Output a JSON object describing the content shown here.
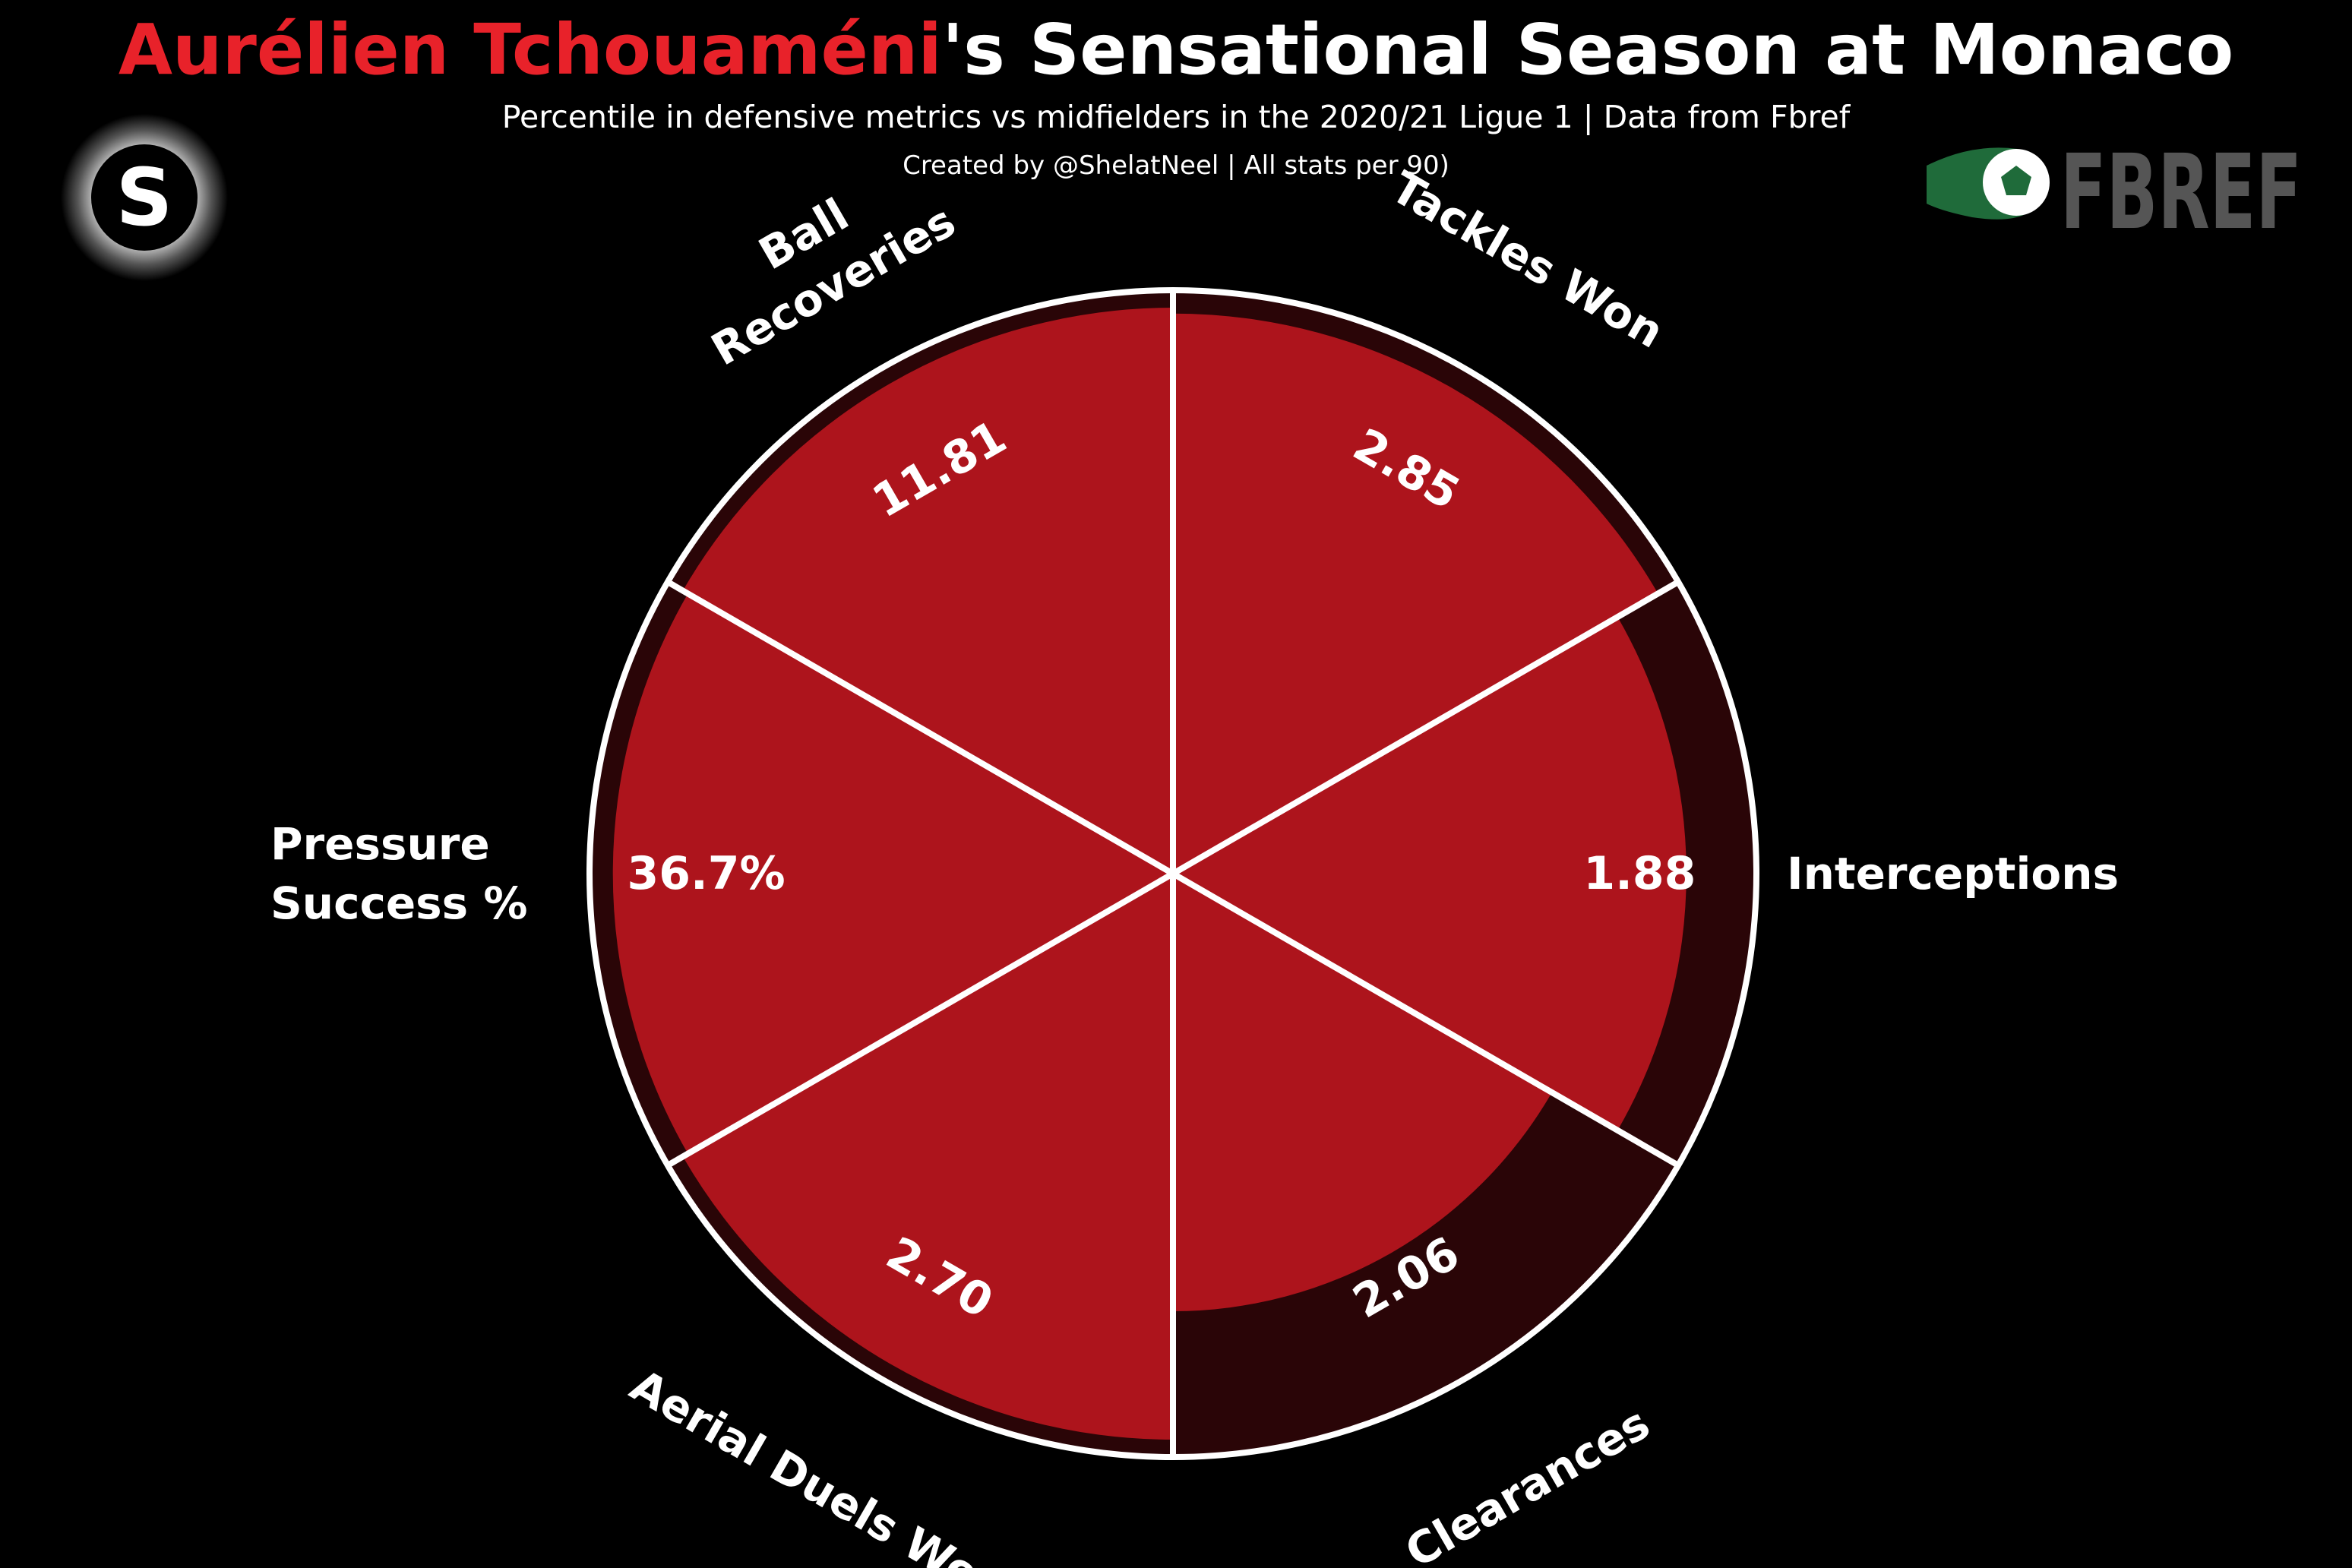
{
  "header": {
    "title_player": "Aurélien Tchouaméni",
    "title_rest": "'s Sensational Season at Monaco",
    "subtitle": "Percentile in defensive metrics vs midfielders in the 2020/21 Ligue 1 | Data from Fbref",
    "credit": "Created by @ShelatNeel | All stats per 90)"
  },
  "logos": {
    "left_letter": "S",
    "fbref_text": "FBREF"
  },
  "colors": {
    "background": "#000000",
    "accent": "#e8222a",
    "slice_fill": "#ad141c",
    "slice_track": "#2a0507",
    "edge": "#ffffff",
    "fbref_green": "#1f6b3a",
    "fbref_gray": "#555555"
  },
  "chart_data": {
    "type": "pie",
    "title": "Aurélien Tchouaméni's Sensational Season at Monaco",
    "scale": "percentile",
    "rmax": 100,
    "slices": [
      {
        "name": "Tackles Won",
        "label_lines": [
          "Tackles Won"
        ],
        "value_label": "2.85",
        "percentile": 96
      },
      {
        "name": "Interceptions",
        "label_lines": [
          "Interceptions"
        ],
        "value_label": "1.88",
        "percentile": 88
      },
      {
        "name": "Clearances",
        "label_lines": [
          "Clearances"
        ],
        "value_label": "2.06",
        "percentile": 75
      },
      {
        "name": "Aerial Duels Won",
        "label_lines": [
          "Aerial Duels Won"
        ],
        "value_label": "2.70",
        "percentile": 97
      },
      {
        "name": "Pressure Success %",
        "label_lines": [
          "Pressure",
          "Success %"
        ],
        "value_label": "36.7%",
        "percentile": 96
      },
      {
        "name": "Ball Recoveries",
        "label_lines": [
          "Ball",
          "Recoveries"
        ],
        "value_label": "11.81",
        "percentile": 97
      }
    ]
  }
}
